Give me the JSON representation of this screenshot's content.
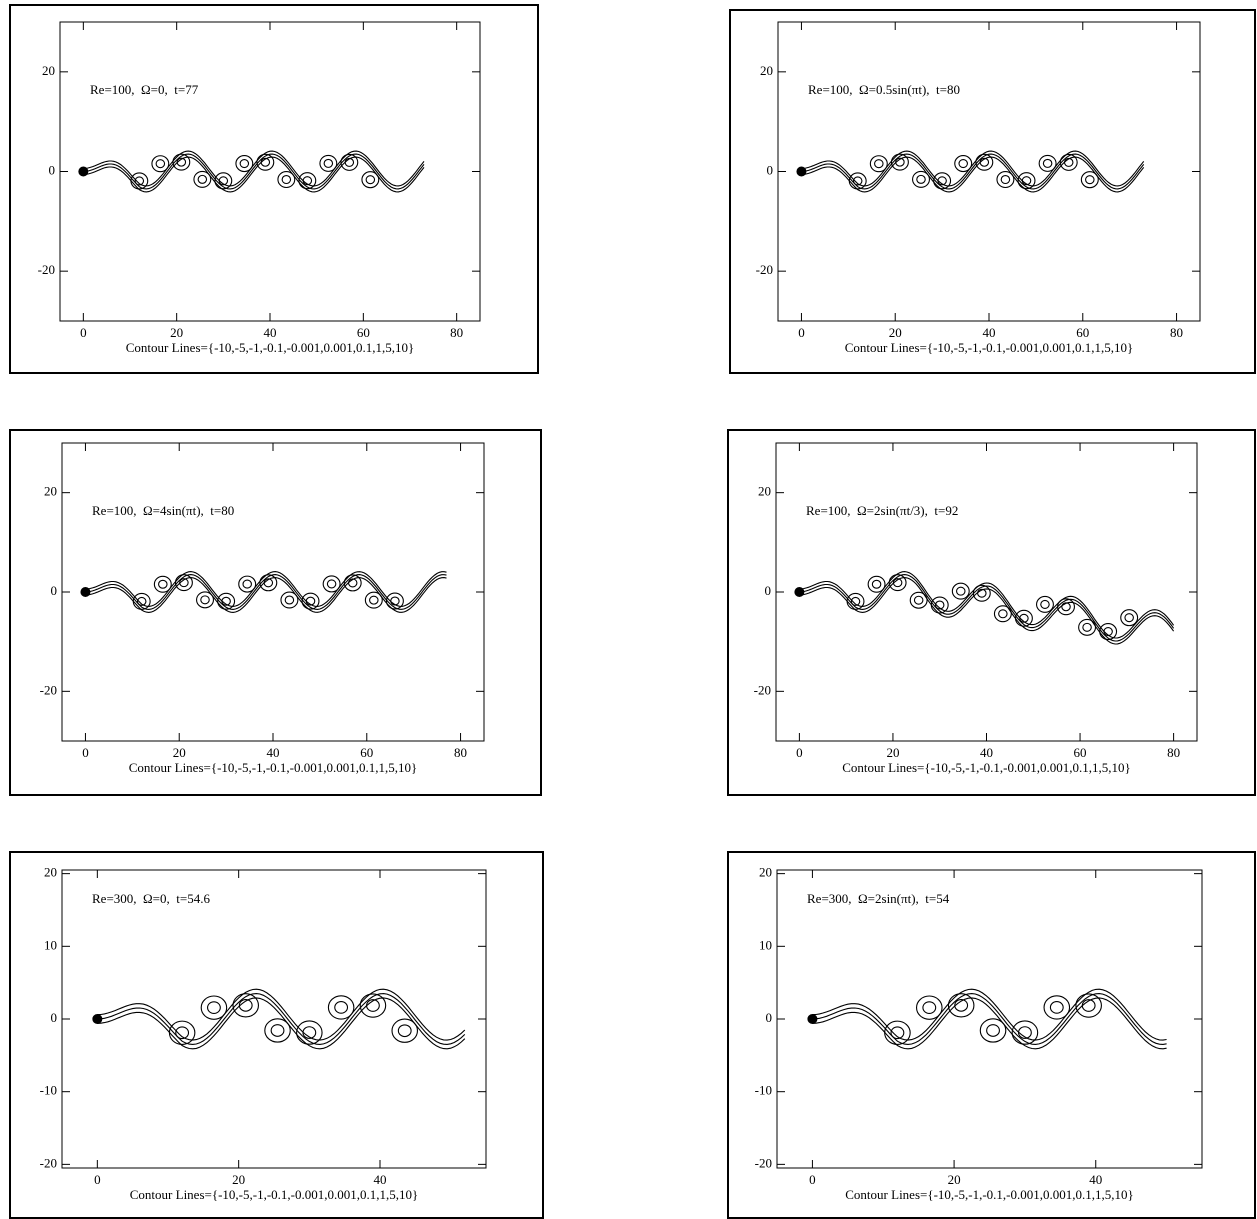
{
  "chart_data": [
    {
      "type": "contour",
      "annotation": "Re=100,  Ω=0,  t=77",
      "xlabel": "Contour Lines={-10,-5,-1,-0.1,-0.001,0.001,0.1,1,5,10}",
      "xlim": [
        -5,
        85
      ],
      "ylim": [
        -30,
        30
      ],
      "xticks": [
        0,
        20,
        40,
        60,
        80
      ],
      "yticks": [
        -20,
        0,
        20
      ]
    },
    {
      "type": "contour",
      "annotation": "Re=100,  Ω=0.5sin(πt),  t=80",
      "xlabel": "Contour Lines={-10,-5,-1,-0.1,-0.001,0.001,0.1,1,5,10}",
      "xlim": [
        -5,
        85
      ],
      "ylim": [
        -30,
        30
      ],
      "xticks": [
        0,
        20,
        40,
        60,
        80
      ],
      "yticks": [
        -20,
        0,
        20
      ]
    },
    {
      "type": "contour",
      "annotation": "Re=100,  Ω=4sin(πt),  t=80",
      "xlabel": "Contour Lines={-10,-5,-1,-0.1,-0.001,0.001,0.1,1,5,10}",
      "xlim": [
        -5,
        85
      ],
      "ylim": [
        -30,
        30
      ],
      "xticks": [
        0,
        20,
        40,
        60,
        80
      ],
      "yticks": [
        -20,
        0,
        20
      ]
    },
    {
      "type": "contour",
      "annotation": "Re=100,  Ω=2sin(πt/3),  t=92",
      "xlabel": "Contour Lines={-10,-5,-1,-0.1,-0.001,0.001,0.1,1,5,10}",
      "xlim": [
        -5,
        85
      ],
      "ylim": [
        -30,
        30
      ],
      "xticks": [
        0,
        20,
        40,
        60,
        80
      ],
      "yticks": [
        -20,
        0,
        20
      ]
    },
    {
      "type": "contour",
      "annotation": "Re=300,  Ω=0,  t=54.6",
      "xlabel": "Contour Lines={-10,-5,-1,-0.1,-0.001,0.001,0.1,1,5,10}",
      "xlim": [
        -5,
        55
      ],
      "ylim": [
        -20.5,
        20.5
      ],
      "xticks": [
        0,
        20,
        40
      ],
      "yticks": [
        -20,
        -10,
        0,
        10,
        20
      ]
    },
    {
      "type": "contour",
      "annotation": "Re=300,  Ω=2sin(πt),  t=54",
      "xlabel": "Contour Lines={-10,-5,-1,-0.1,-0.001,0.001,0.1,1,5,10}",
      "xlim": [
        -5,
        55
      ],
      "ylim": [
        -20.5,
        20.5
      ],
      "xticks": [
        0,
        20,
        40
      ],
      "yticks": [
        -20,
        -10,
        0,
        10,
        20
      ]
    }
  ]
}
